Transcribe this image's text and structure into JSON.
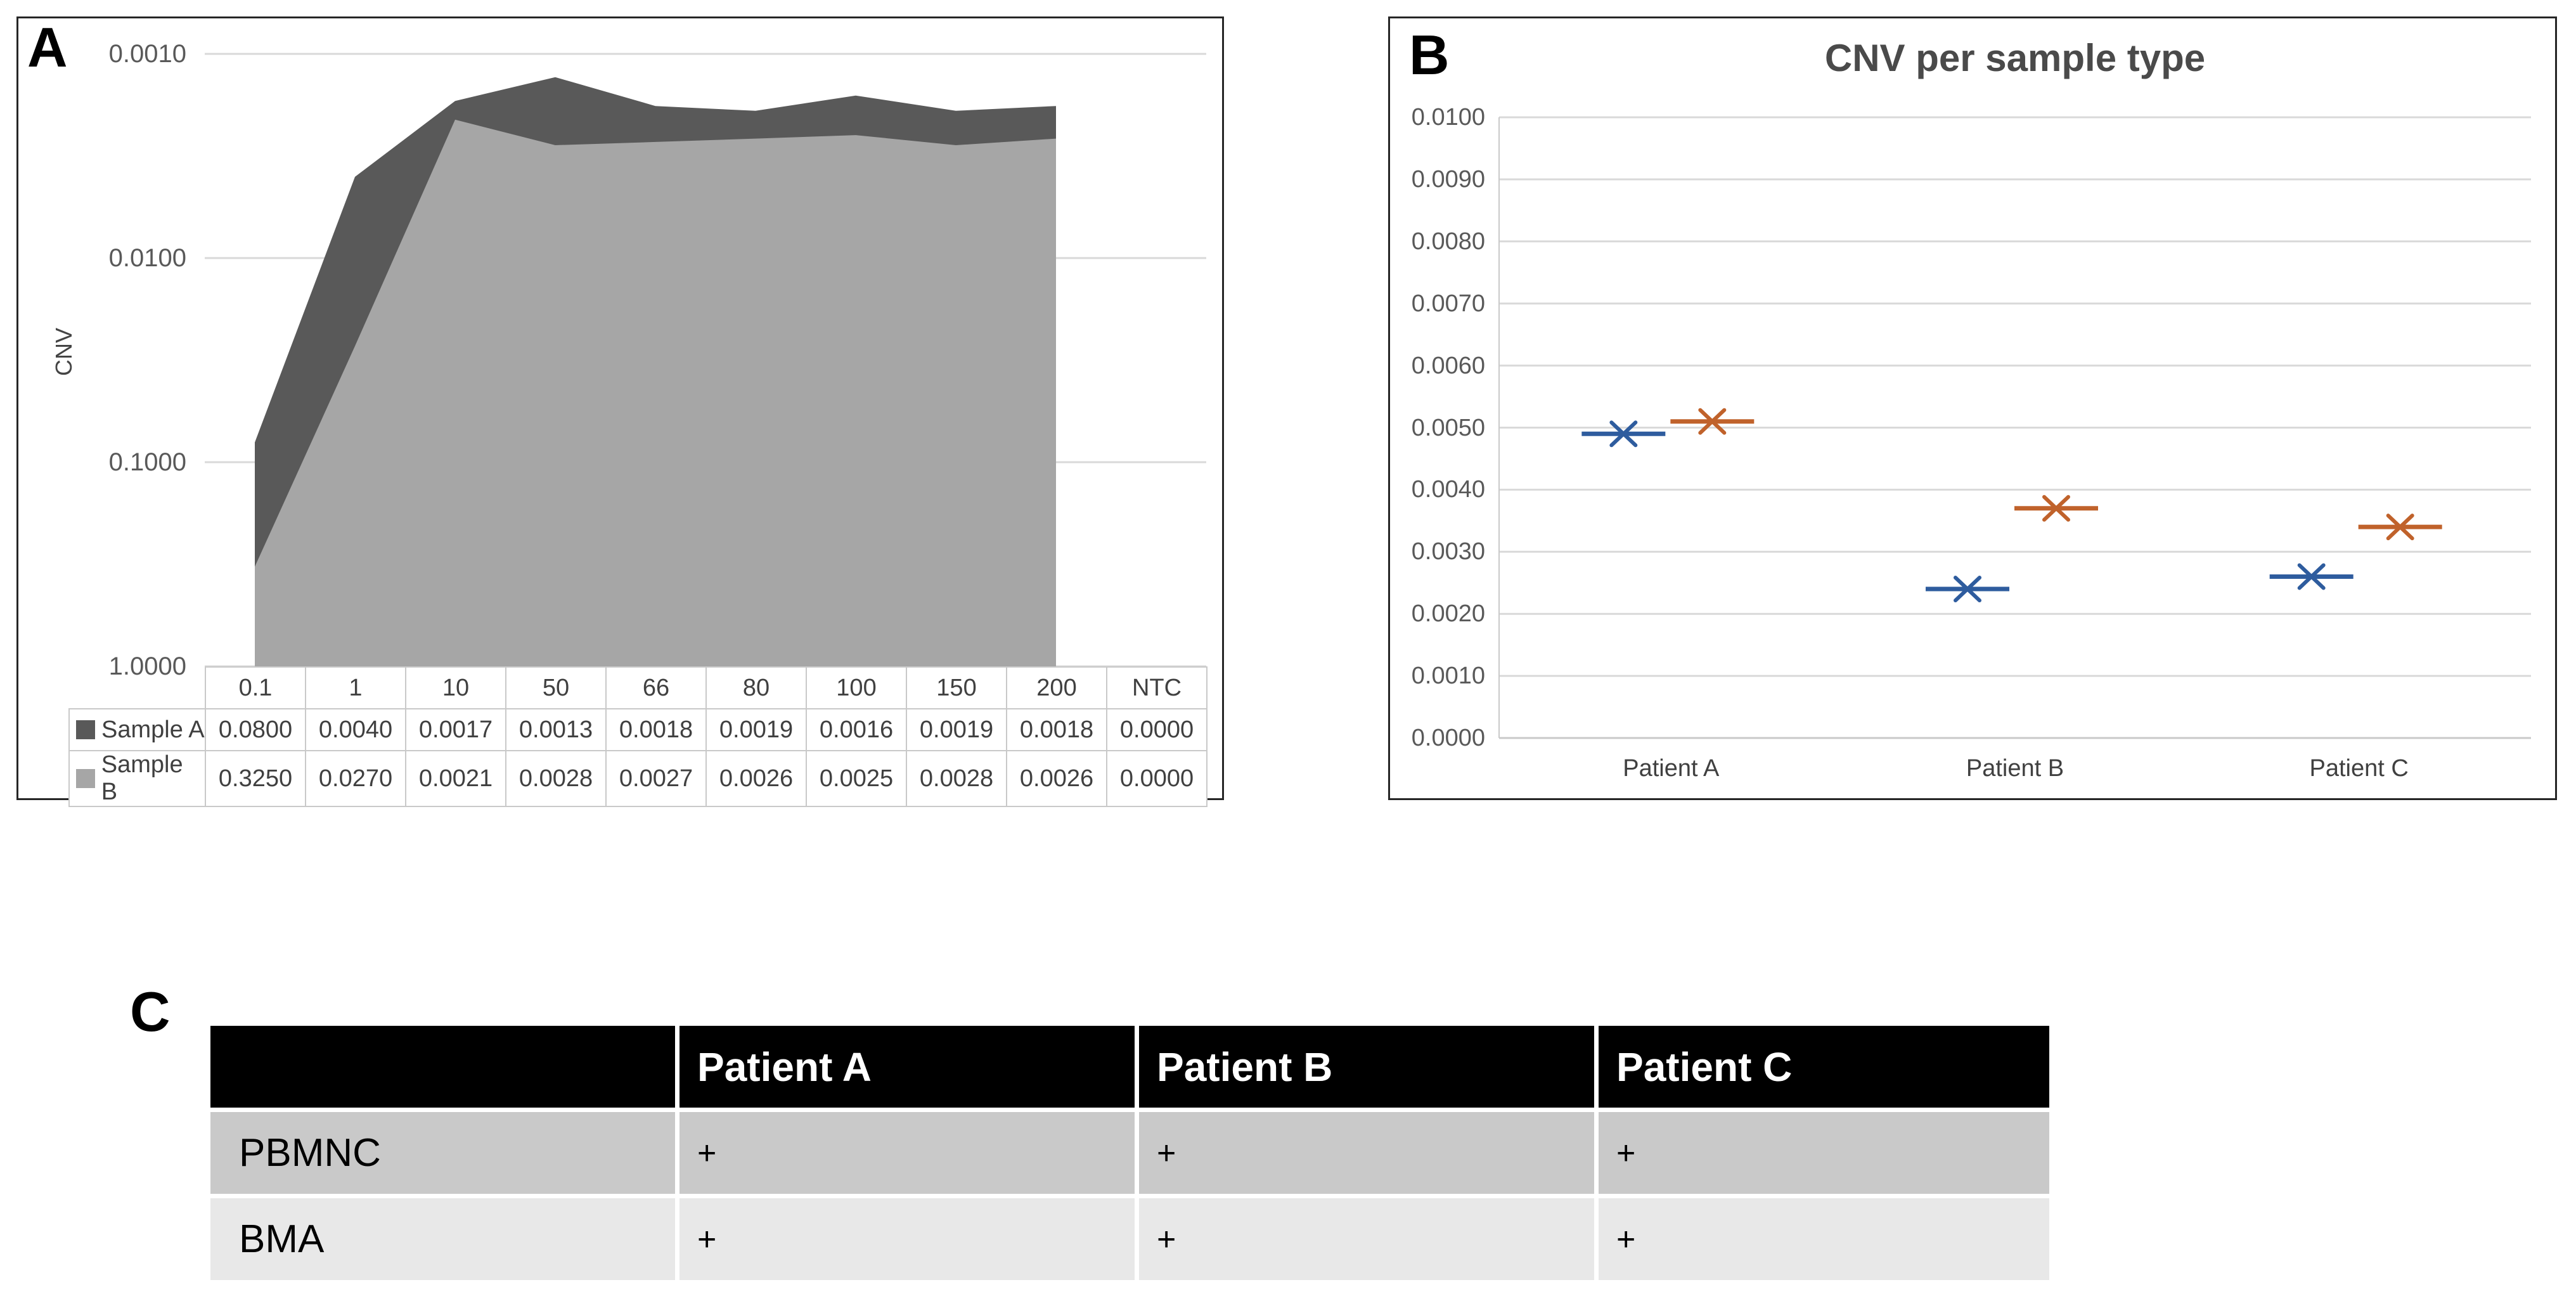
{
  "figure": {
    "background": "#FFFFFF",
    "gridline_color": "#D9D9D9",
    "axis_line_color": "#C9C9C9"
  },
  "chart_data": [
    {
      "id": "panel-a",
      "panel_label": "A",
      "type": "area",
      "ylabel": "CNV",
      "y_scale": "log10-reversed",
      "y_ticks": [
        "0.0010",
        "0.0100",
        "0.1000",
        "1.0000"
      ],
      "y_top_value": 0.001,
      "y_bottom_value": 1.0,
      "grid": true,
      "categories": [
        "0.1",
        "1",
        "10",
        "50",
        "66",
        "80",
        "100",
        "150",
        "200",
        "NTC"
      ],
      "series": [
        {
          "name": "Sample A",
          "color": "#595959",
          "values": [
            0.08,
            0.004,
            0.0017,
            0.0013,
            0.0018,
            0.0019,
            0.0016,
            0.0019,
            0.0018,
            0.0
          ]
        },
        {
          "name": "Sample B",
          "color": "#A6A6A6",
          "values": [
            0.325,
            0.027,
            0.0021,
            0.0028,
            0.0027,
            0.0026,
            0.0025,
            0.0028,
            0.0026,
            0.0
          ]
        }
      ],
      "table_value_decimals": 4
    },
    {
      "id": "panel-b",
      "panel_label": "B",
      "type": "scatter",
      "title": "CNV per sample type",
      "marker": "x-with-horizontal-dash",
      "grid": true,
      "legend_position": "none",
      "ylim": [
        0.0,
        0.01
      ],
      "y_ticks": [
        "0.0100",
        "0.0090",
        "0.0080",
        "0.0070",
        "0.0060",
        "0.0050",
        "0.0040",
        "0.0030",
        "0.0020",
        "0.0010",
        "0.0000"
      ],
      "categories": [
        "Patient A",
        "Patient B",
        "Patient C"
      ],
      "series": [
        {
          "name": "blue-series",
          "color": "#2E5C9E",
          "values": [
            0.0049,
            0.0024,
            0.0026
          ]
        },
        {
          "name": "orange-series",
          "color": "#C0622B",
          "values": [
            0.0051,
            0.0037,
            0.0034
          ]
        }
      ]
    }
  ],
  "panel_c": {
    "label": "C",
    "header_bg": "#000000",
    "header_text_color": "#FFFFFF",
    "columns": [
      "",
      "Patient A",
      "Patient B",
      "Patient C"
    ],
    "rows": [
      {
        "label": "PBMNC",
        "values": [
          "+",
          "+",
          "+"
        ],
        "bg": "#C9C9C9"
      },
      {
        "label": "BMA",
        "values": [
          "+",
          "+",
          "+"
        ],
        "bg": "#E8E8E8"
      }
    ]
  }
}
